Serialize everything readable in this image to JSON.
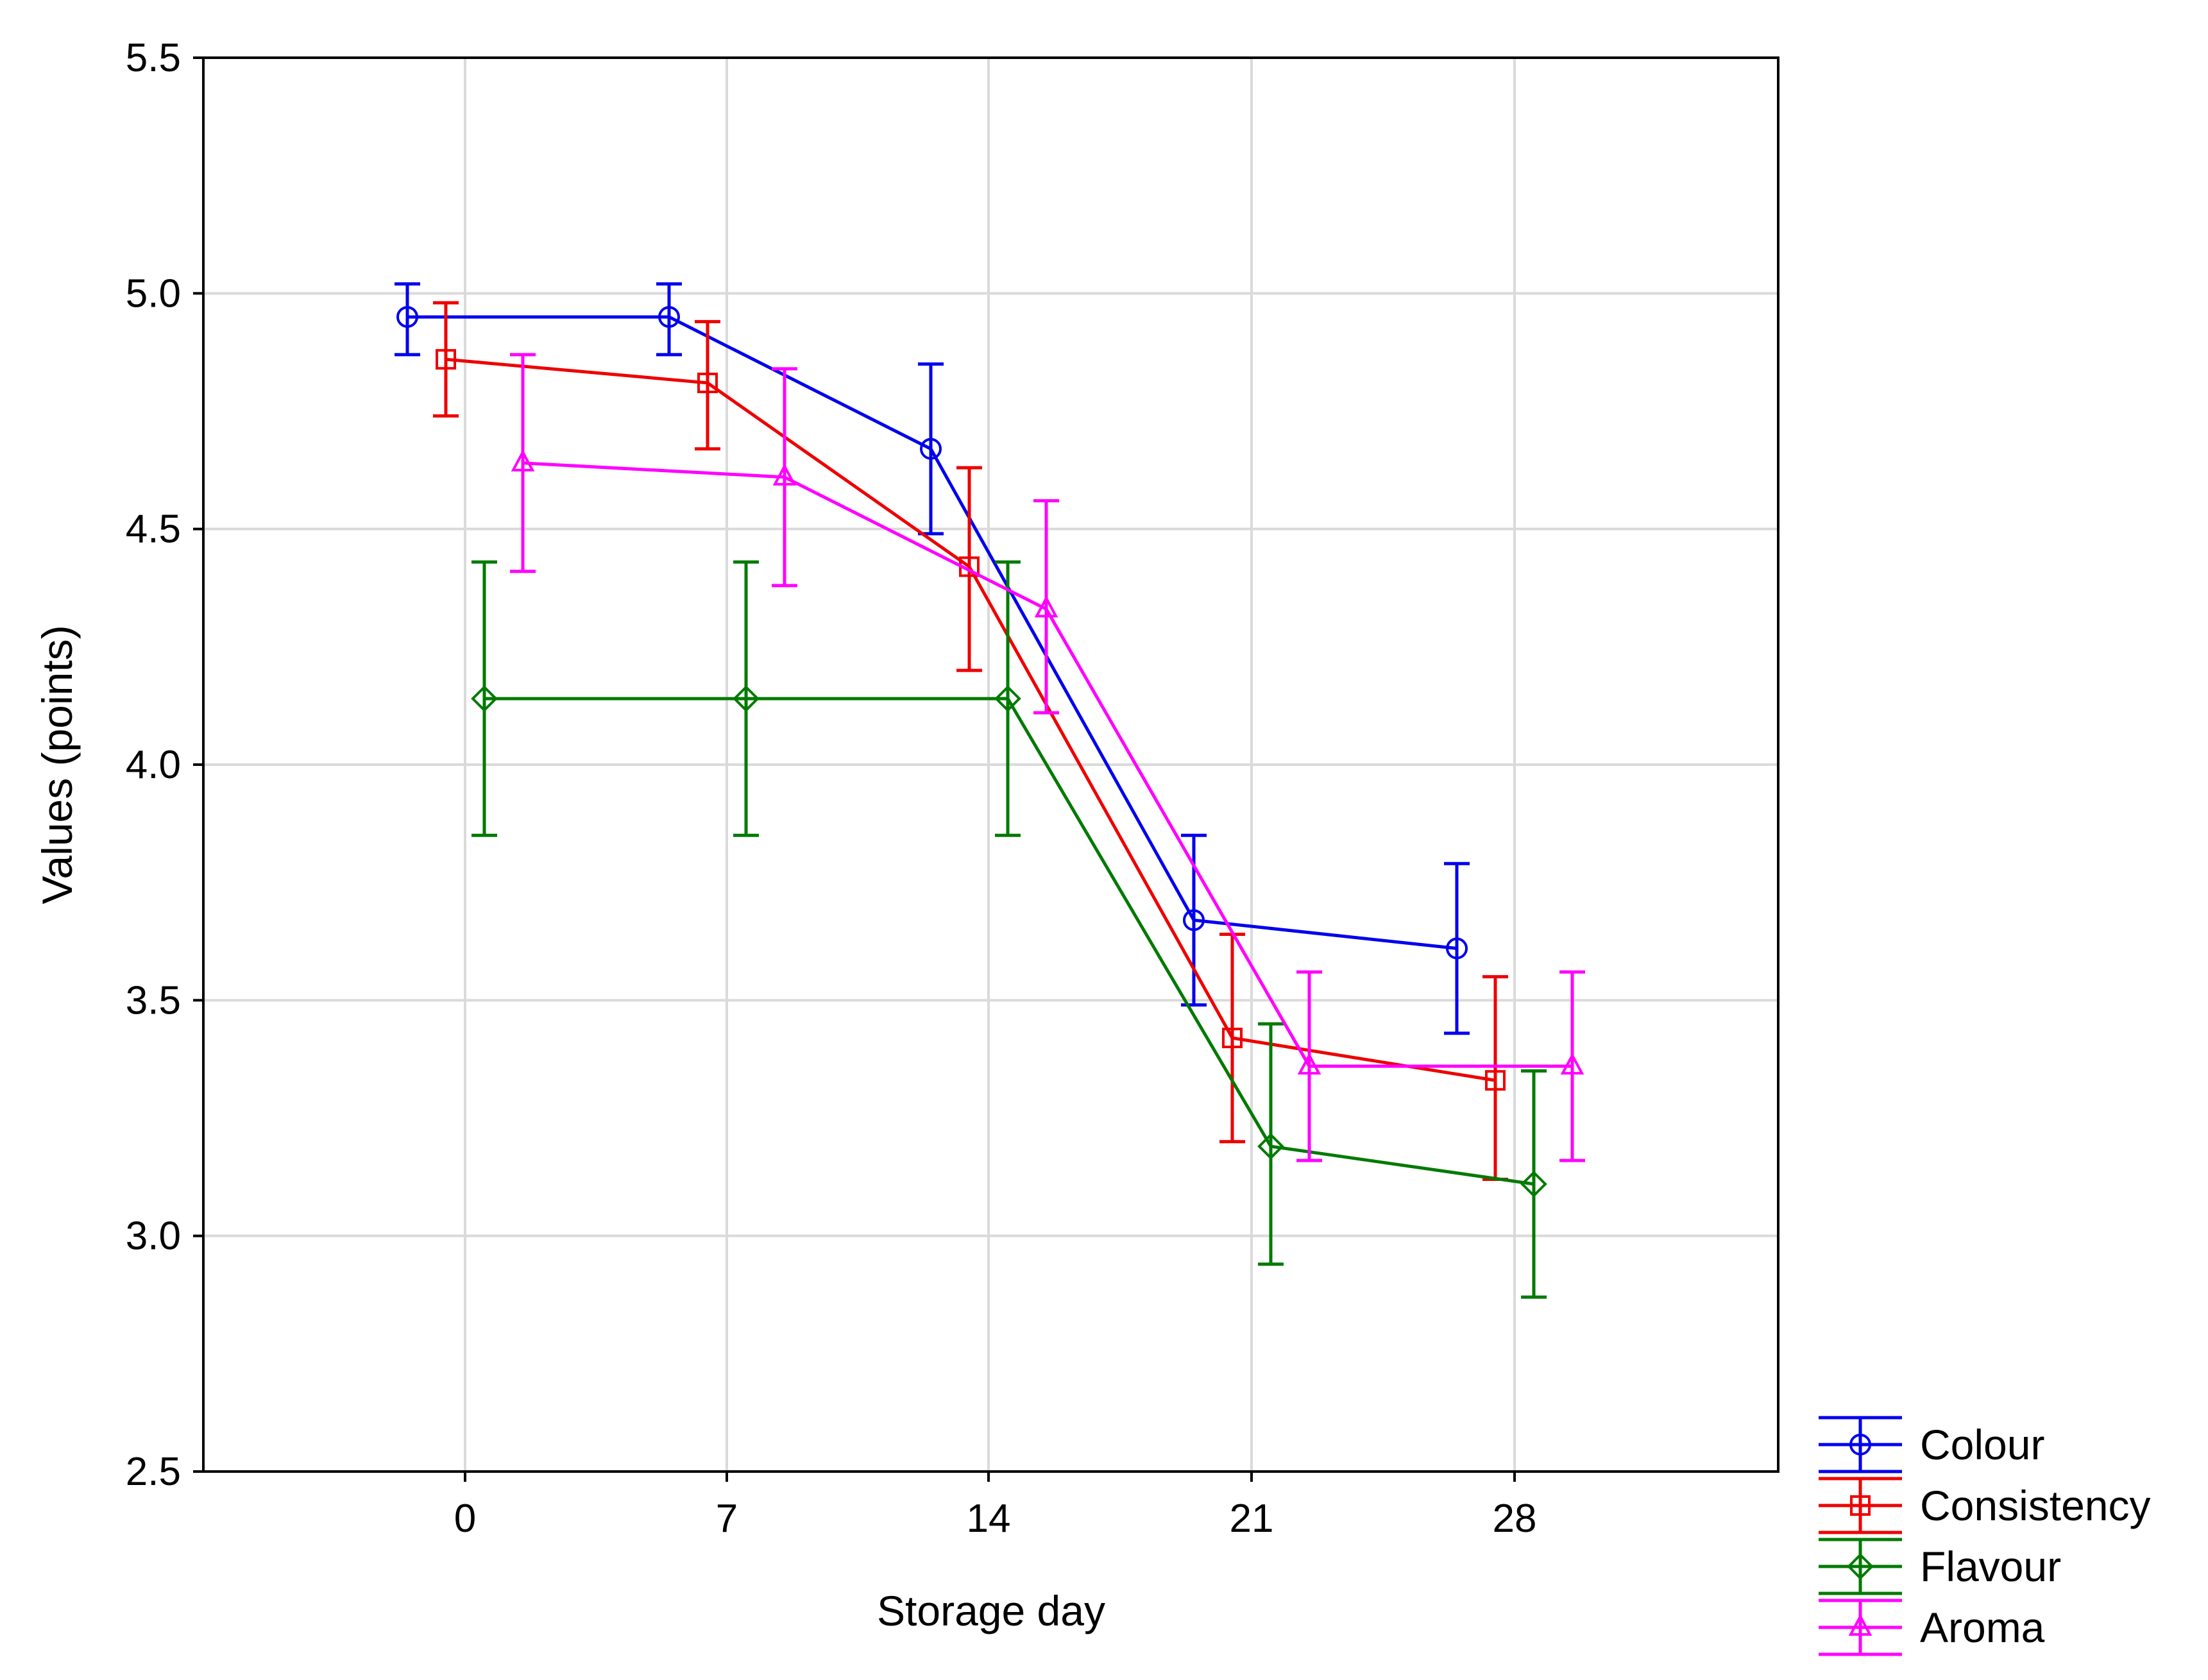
{
  "chart_data": {
    "type": "line",
    "title": "",
    "xlabel": "Storage day",
    "ylabel": "Values (points)",
    "categories": [
      "0",
      "7",
      "14",
      "21",
      "28"
    ],
    "ylim": [
      2.5,
      5.5
    ],
    "yticks": [
      "2.5",
      "3.0",
      "3.5",
      "4.0",
      "4.5",
      "5.0",
      "5.5"
    ],
    "grid": true,
    "legend_position": "bottom-right",
    "error_bars": true,
    "series": [
      {
        "name": "Colour",
        "color": "#0000ee",
        "marker": "circle",
        "values": [
          4.95,
          4.95,
          4.67,
          3.67,
          3.61
        ],
        "err_low": [
          4.87,
          4.87,
          4.49,
          3.49,
          3.43
        ],
        "err_high": [
          5.02,
          5.02,
          4.85,
          3.85,
          3.79
        ]
      },
      {
        "name": "Consistency",
        "color": "#ee0000",
        "marker": "square",
        "values": [
          4.86,
          4.81,
          4.42,
          3.42,
          3.33
        ],
        "err_low": [
          4.74,
          4.67,
          4.2,
          3.2,
          3.12
        ],
        "err_high": [
          4.98,
          4.94,
          4.63,
          3.64,
          3.55
        ]
      },
      {
        "name": "Flavour",
        "color": "#007a00",
        "marker": "diamond",
        "values": [
          4.14,
          4.14,
          4.14,
          3.19,
          3.11
        ],
        "err_low": [
          3.85,
          3.85,
          3.85,
          2.94,
          2.87
        ],
        "err_high": [
          4.43,
          4.43,
          4.43,
          3.45,
          3.35
        ]
      },
      {
        "name": "Aroma",
        "color": "#ff00ff",
        "marker": "triangle",
        "values": [
          4.64,
          4.61,
          4.33,
          3.36,
          3.36
        ],
        "err_low": [
          4.41,
          4.38,
          4.11,
          3.16,
          3.16
        ],
        "err_high": [
          4.87,
          4.84,
          4.56,
          3.56,
          3.56
        ]
      }
    ]
  }
}
